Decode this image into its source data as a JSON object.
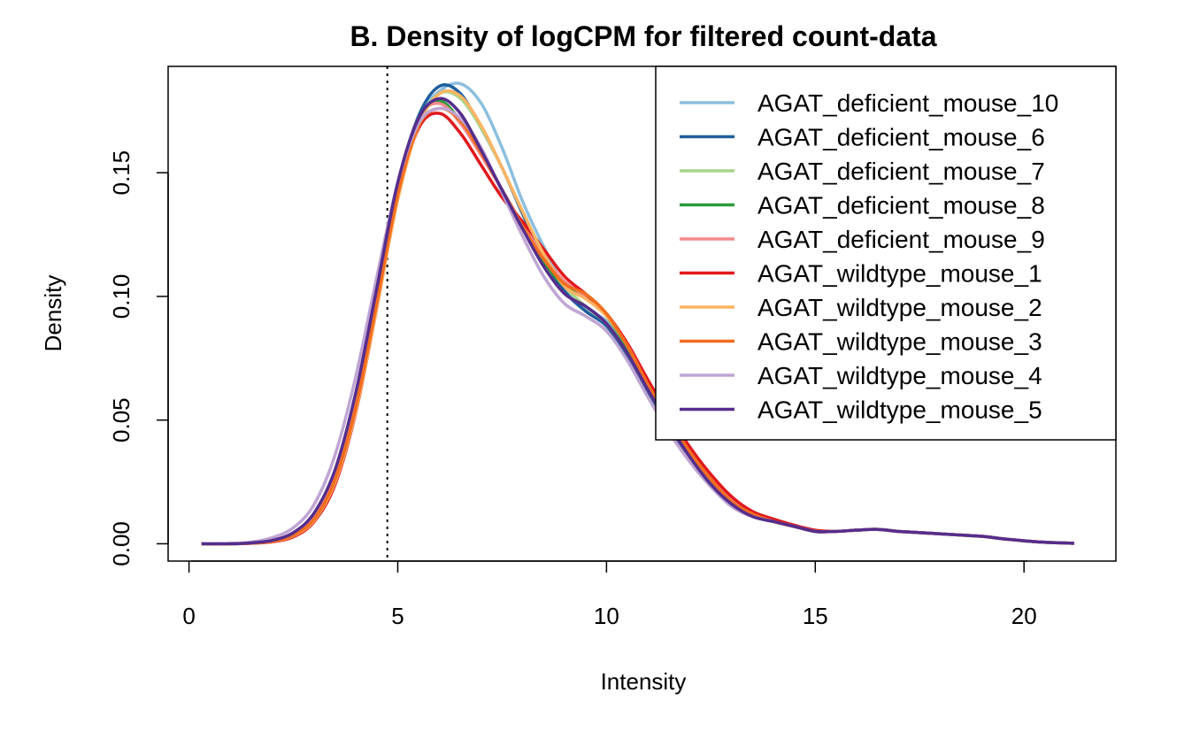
{
  "chart_data": {
    "type": "line",
    "title": "B. Density of logCPM for filtered count-data",
    "xlabel": "Intensity",
    "ylabel": "Density",
    "xlim": [
      -0.5,
      22.2
    ],
    "ylim": [
      -0.007,
      0.193
    ],
    "x_ticks": [
      0,
      5,
      10,
      15,
      20
    ],
    "y_ticks": [
      0.0,
      0.05,
      0.1,
      0.15
    ],
    "x_tick_labels": [
      "0",
      "5",
      "10",
      "15",
      "20"
    ],
    "y_tick_labels": [
      "0.00",
      "0.05",
      "0.10",
      "0.15"
    ],
    "cutoff_line": {
      "x": 4.75,
      "style": "dotted"
    },
    "legend_position": "top-right",
    "x": [
      0.3,
      1,
      1.5,
      2,
      2.5,
      3,
      3.5,
      4,
      4.5,
      5,
      5.5,
      6,
      6.5,
      7,
      7.5,
      8,
      8.5,
      9,
      9.5,
      10,
      10.5,
      11,
      11.5,
      12,
      12.5,
      13,
      13.5,
      14,
      14.5,
      15,
      15.5,
      16,
      16.5,
      17,
      17.5,
      18,
      18.5,
      19,
      19.5,
      20,
      20.5,
      21,
      21.2
    ],
    "series": [
      {
        "name": "AGAT_deficient_mouse_10",
        "color": "#8CBFDE",
        "values": [
          0,
          0,
          0.0004,
          0.0013,
          0.004,
          0.011,
          0.028,
          0.058,
          0.1,
          0.143,
          0.172,
          0.183,
          0.186,
          0.178,
          0.16,
          0.138,
          0.12,
          0.104,
          0.095,
          0.09,
          0.078,
          0.062,
          0.048,
          0.035,
          0.024,
          0.016,
          0.011,
          0.009,
          0.007,
          0.005,
          0.005,
          0.0055,
          0.0058,
          0.005,
          0.0045,
          0.004,
          0.0035,
          0.003,
          0.002,
          0.0012,
          0.0006,
          0.0003,
          0.0002
        ]
      },
      {
        "name": "AGAT_deficient_mouse_6",
        "color": "#1F5E9E",
        "values": [
          0,
          0,
          0.0003,
          0.001,
          0.0035,
          0.0105,
          0.0275,
          0.0585,
          0.1015,
          0.145,
          0.173,
          0.185,
          0.182,
          0.168,
          0.152,
          0.133,
          0.115,
          0.102,
          0.094,
          0.088,
          0.076,
          0.061,
          0.047,
          0.034,
          0.024,
          0.016,
          0.011,
          0.009,
          0.007,
          0.005,
          0.005,
          0.0055,
          0.0058,
          0.005,
          0.0045,
          0.004,
          0.0035,
          0.003,
          0.002,
          0.0012,
          0.0006,
          0.0003,
          0.0002
        ]
      },
      {
        "name": "AGAT_deficient_mouse_7",
        "color": "#A6D68A",
        "values": [
          0,
          0,
          0.0004,
          0.0012,
          0.0038,
          0.0108,
          0.027,
          0.057,
          0.099,
          0.142,
          0.17,
          0.182,
          0.18,
          0.168,
          0.152,
          0.134,
          0.117,
          0.104,
          0.096,
          0.089,
          0.077,
          0.062,
          0.048,
          0.035,
          0.024,
          0.016,
          0.011,
          0.009,
          0.007,
          0.005,
          0.005,
          0.0055,
          0.0058,
          0.005,
          0.0045,
          0.004,
          0.0035,
          0.003,
          0.002,
          0.0012,
          0.0006,
          0.0003,
          0.0002
        ]
      },
      {
        "name": "AGAT_deficient_mouse_8",
        "color": "#2A9A3A",
        "values": [
          0,
          0,
          0.0004,
          0.0012,
          0.0038,
          0.011,
          0.028,
          0.0585,
          0.1015,
          0.144,
          0.171,
          0.179,
          0.171,
          0.158,
          0.143,
          0.128,
          0.114,
          0.104,
          0.1,
          0.092,
          0.079,
          0.063,
          0.049,
          0.036,
          0.025,
          0.017,
          0.012,
          0.009,
          0.007,
          0.005,
          0.005,
          0.0055,
          0.0058,
          0.005,
          0.0045,
          0.004,
          0.0035,
          0.003,
          0.002,
          0.0012,
          0.0006,
          0.0003,
          0.0002
        ]
      },
      {
        "name": "AGAT_deficient_mouse_9",
        "color": "#F48A8A",
        "values": [
          0,
          0.0001,
          0.0005,
          0.0015,
          0.0042,
          0.0115,
          0.0285,
          0.0595,
          0.1025,
          0.145,
          0.172,
          0.178,
          0.17,
          0.157,
          0.143,
          0.129,
          0.116,
          0.106,
          0.1,
          0.093,
          0.08,
          0.064,
          0.05,
          0.037,
          0.026,
          0.018,
          0.012,
          0.009,
          0.007,
          0.005,
          0.005,
          0.0055,
          0.0058,
          0.005,
          0.0045,
          0.004,
          0.0035,
          0.003,
          0.002,
          0.0012,
          0.0006,
          0.0003,
          0.0002
        ]
      },
      {
        "name": "AGAT_wildtype_mouse_1",
        "color": "#E0181C",
        "values": [
          0,
          0,
          0.0002,
          0.0008,
          0.0028,
          0.009,
          0.024,
          0.0535,
          0.0955,
          0.14,
          0.168,
          0.174,
          0.166,
          0.153,
          0.14,
          0.13,
          0.119,
          0.108,
          0.101,
          0.093,
          0.081,
          0.066,
          0.052,
          0.039,
          0.028,
          0.019,
          0.013,
          0.01,
          0.0075,
          0.0055,
          0.005,
          0.0055,
          0.0058,
          0.005,
          0.0045,
          0.004,
          0.0035,
          0.003,
          0.002,
          0.0012,
          0.0006,
          0.0003,
          0.0002
        ]
      },
      {
        "name": "AGAT_wildtype_mouse_2",
        "color": "#FDB462",
        "values": [
          0,
          0,
          0.0003,
          0.001,
          0.0032,
          0.0095,
          0.025,
          0.054,
          0.0955,
          0.139,
          0.169,
          0.182,
          0.181,
          0.169,
          0.152,
          0.134,
          0.117,
          0.104,
          0.099,
          0.092,
          0.08,
          0.064,
          0.05,
          0.037,
          0.026,
          0.017,
          0.012,
          0.009,
          0.007,
          0.005,
          0.005,
          0.0055,
          0.0058,
          0.005,
          0.0045,
          0.004,
          0.0035,
          0.003,
          0.002,
          0.0012,
          0.0006,
          0.0003,
          0.0002
        ]
      },
      {
        "name": "AGAT_wildtype_mouse_3",
        "color": "#F26D1F",
        "values": [
          0,
          0,
          0.0003,
          0.001,
          0.0035,
          0.01,
          0.026,
          0.0555,
          0.0975,
          0.141,
          0.169,
          0.176,
          0.171,
          0.158,
          0.143,
          0.128,
          0.115,
          0.105,
          0.101,
          0.093,
          0.08,
          0.064,
          0.05,
          0.037,
          0.026,
          0.017,
          0.012,
          0.009,
          0.007,
          0.005,
          0.005,
          0.0055,
          0.0058,
          0.005,
          0.0045,
          0.004,
          0.0035,
          0.003,
          0.002,
          0.0012,
          0.0006,
          0.0003,
          0.0002
        ]
      },
      {
        "name": "AGAT_wildtype_mouse_4",
        "color": "#BFA5D3",
        "values": [
          0,
          0.0001,
          0.0007,
          0.0025,
          0.0065,
          0.016,
          0.036,
          0.068,
          0.108,
          0.146,
          0.17,
          0.176,
          0.172,
          0.16,
          0.142,
          0.124,
          0.108,
          0.097,
          0.092,
          0.086,
          0.074,
          0.059,
          0.045,
          0.033,
          0.023,
          0.015,
          0.011,
          0.009,
          0.007,
          0.005,
          0.005,
          0.0055,
          0.0058,
          0.005,
          0.0045,
          0.004,
          0.0035,
          0.003,
          0.002,
          0.0012,
          0.0006,
          0.0003,
          0.0002
        ]
      },
      {
        "name": "AGAT_wildtype_mouse_5",
        "color": "#552D8C",
        "values": [
          0,
          0,
          0.0004,
          0.0014,
          0.0045,
          0.0125,
          0.03,
          0.0615,
          0.1035,
          0.146,
          0.172,
          0.18,
          0.174,
          0.159,
          0.143,
          0.127,
          0.112,
          0.101,
          0.096,
          0.089,
          0.077,
          0.062,
          0.048,
          0.035,
          0.024,
          0.016,
          0.011,
          0.009,
          0.007,
          0.005,
          0.005,
          0.0055,
          0.0058,
          0.005,
          0.0045,
          0.004,
          0.0035,
          0.003,
          0.002,
          0.0012,
          0.0006,
          0.0003,
          0.0002
        ]
      }
    ]
  }
}
